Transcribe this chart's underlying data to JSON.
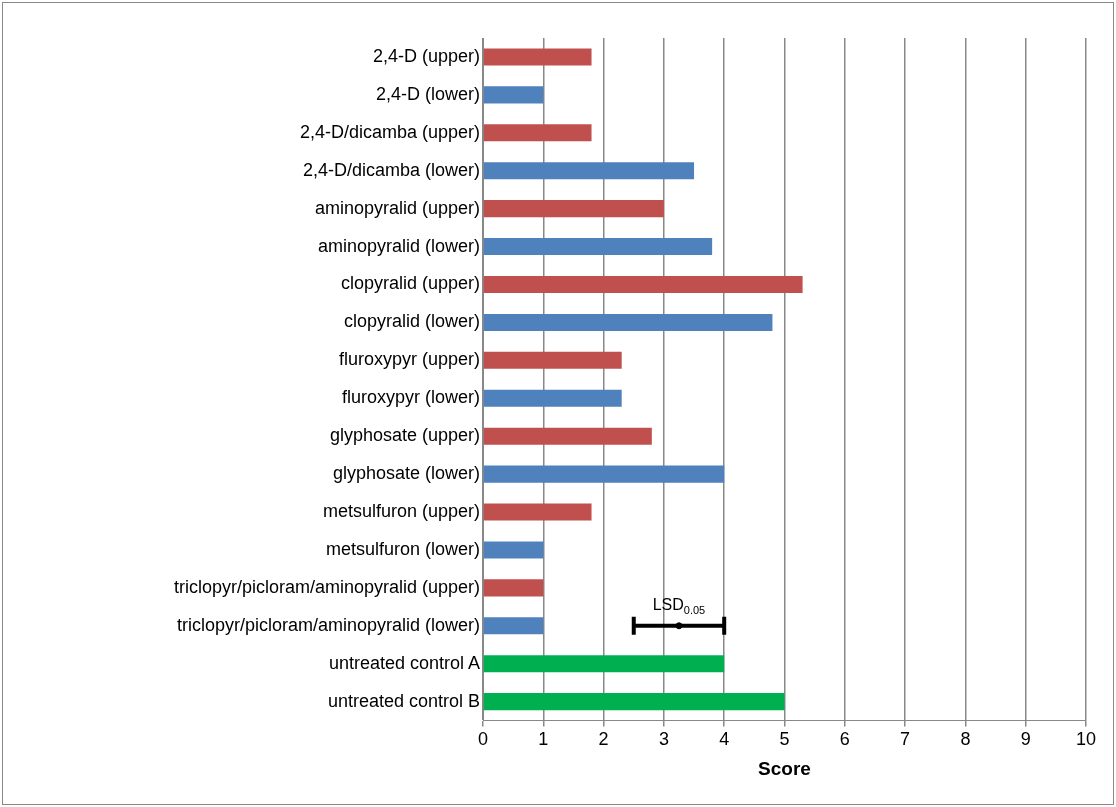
{
  "chart_data": {
    "type": "bar",
    "orientation": "horizontal",
    "xlabel": "Score",
    "categories": [
      "2,4-D (upper)",
      "2,4-D (lower)",
      "2,4-D/dicamba (upper)",
      "2,4-D/dicamba (lower)",
      "aminopyralid (upper)",
      "aminopyralid (lower)",
      "clopyralid (upper)",
      "clopyralid (lower)",
      "fluroxypyr (upper)",
      "fluroxypyr (lower)",
      "glyphosate (upper)",
      "glyphosate (lower)",
      "metsulfuron (upper)",
      "metsulfuron (lower)",
      "triclopyr/picloram/aminopyralid (upper)",
      "triclopyr/picloram/aminopyralid (lower)",
      "untreated control A",
      "untreated control B"
    ],
    "series": [
      {
        "values": [
          1.8,
          1.0,
          1.8,
          3.5,
          3.0,
          3.8,
          5.3,
          4.8,
          2.3,
          2.3,
          2.8,
          4.0,
          1.8,
          1.0,
          1.0,
          1.0,
          4.0,
          5.0
        ],
        "colors": [
          "#c0504d",
          "#4f81bd",
          "#c0504d",
          "#4f81bd",
          "#c0504d",
          "#4f81bd",
          "#c0504d",
          "#4f81bd",
          "#c0504d",
          "#4f81bd",
          "#c0504d",
          "#4f81bd",
          "#c0504d",
          "#4f81bd",
          "#c0504d",
          "#4f81bd",
          "#00b050",
          "#00b050"
        ]
      },
      {
        "type": "scatter",
        "color": "#000000",
        "values": [
          null,
          null,
          null,
          null,
          null,
          null,
          null,
          null,
          null,
          null,
          null,
          null,
          null,
          null,
          null,
          3.25,
          null,
          null
        ],
        "errors": [
          null,
          null,
          null,
          null,
          null,
          null,
          null,
          null,
          null,
          null,
          null,
          null,
          null,
          null,
          null,
          0.75,
          null,
          null
        ]
      }
    ],
    "annotations": [
      {
        "text": "LSD$_{0.05}$",
        "x": 3.25,
        "y": "triclopyr/picloram/aminopyralid (lower)"
      }
    ],
    "xlim": [
      0,
      10
    ],
    "xticks": [
      0,
      1,
      2,
      3,
      4,
      5,
      6,
      7,
      8,
      9,
      10
    ],
    "grid": "x",
    "legend": false
  }
}
